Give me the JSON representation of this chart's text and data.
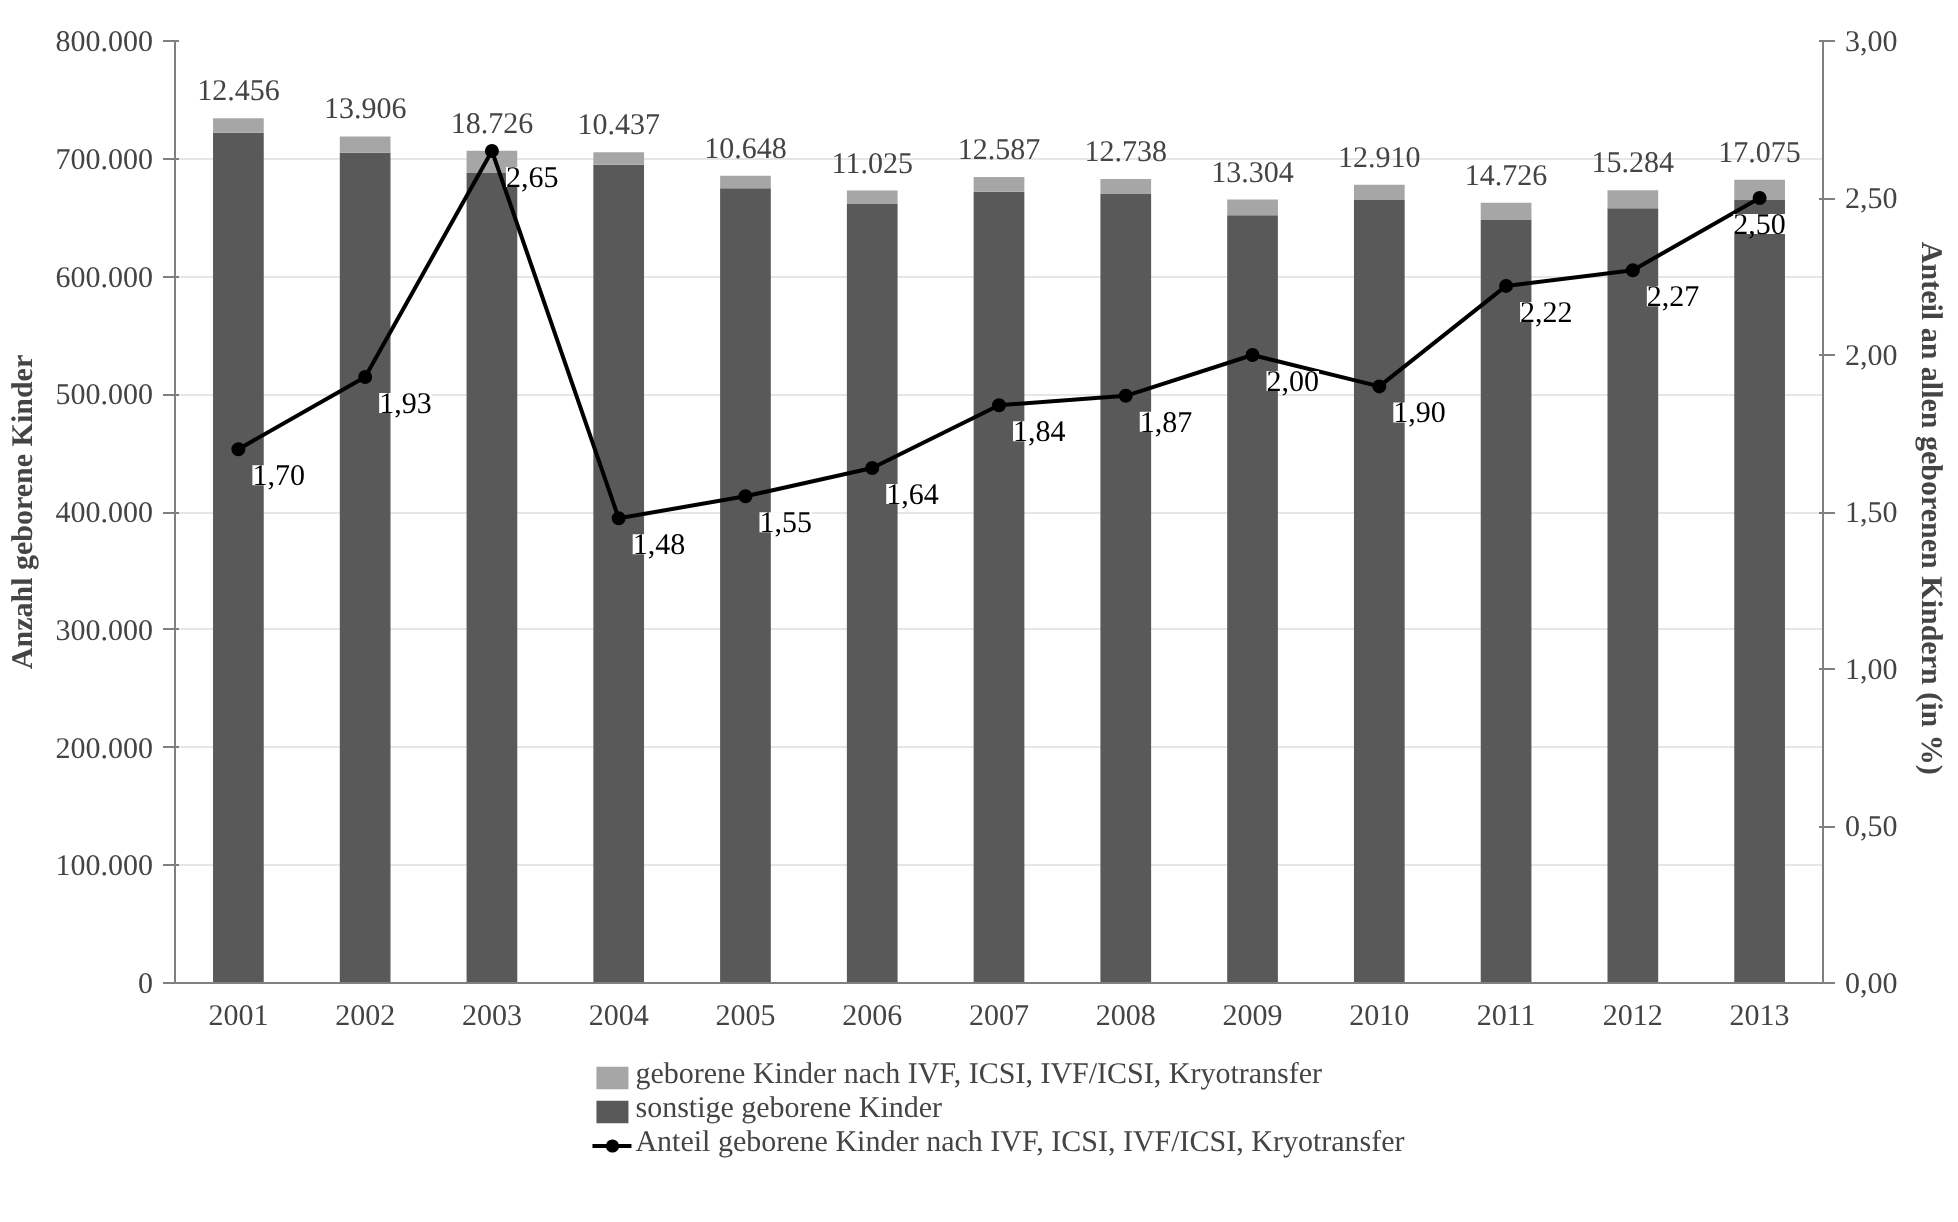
{
  "chart_data": {
    "type": "bar",
    "stacked": true,
    "categories": [
      "2001",
      "2002",
      "2003",
      "2004",
      "2005",
      "2006",
      "2007",
      "2008",
      "2009",
      "2010",
      "2011",
      "2012",
      "2013"
    ],
    "ylabel": "Anzahl geborene Kinder",
    "y2label": "Anteil an allen geborenen Kindern  (in %)",
    "ylim": [
      0,
      800000
    ],
    "yticks": [
      {
        "value": 0,
        "label": "0"
      },
      {
        "value": 100000,
        "label": "100.000"
      },
      {
        "value": 200000,
        "label": "200.000"
      },
      {
        "value": 300000,
        "label": "300.000"
      },
      {
        "value": 400000,
        "label": "400.000"
      },
      {
        "value": 500000,
        "label": "500.000"
      },
      {
        "value": 600000,
        "label": "600.000"
      },
      {
        "value": 700000,
        "label": "700.000"
      },
      {
        "value": 800000,
        "label": "800.000"
      }
    ],
    "y2lim": [
      0,
      3
    ],
    "y2ticks": [
      {
        "value": 0,
        "label": "0,00"
      },
      {
        "value": 0.5,
        "label": "0,50"
      },
      {
        "value": 1,
        "label": "1,00"
      },
      {
        "value": 1.5,
        "label": "1,50"
      },
      {
        "value": 2,
        "label": "2,00"
      },
      {
        "value": 2.5,
        "label": "2,50"
      },
      {
        "value": 3,
        "label": "3,00"
      }
    ],
    "grid": "y",
    "legend": "bottom",
    "series": [
      {
        "name": "sonstige geborene Kinder",
        "color": "#595959",
        "values": [
          722000,
          705000,
          688000,
          695000,
          675000,
          662000,
          672000,
          670000,
          652000,
          665000,
          648000,
          658000,
          665000
        ]
      },
      {
        "name": "geborene Kinder nach IVF, ICSI, IVF/ICSI, Kryotransfer",
        "color": "#a6a6a6",
        "values": [
          12456,
          13906,
          18726,
          10437,
          10648,
          11025,
          12587,
          12738,
          13304,
          12910,
          14726,
          15284,
          17075
        ],
        "value_labels": [
          "12.456",
          "13.906",
          "18.726",
          "10.437",
          "10.648",
          "11.025",
          "12.587",
          "12.738",
          "13.304",
          "12.910",
          "14.726",
          "15.284",
          "17.075"
        ]
      },
      {
        "name": "Anteil geborene Kinder nach IVF, ICSI, IVF/ICSI, Kryotransfer",
        "type": "line",
        "axis": "y2",
        "color": "#000000",
        "marker": "circle",
        "values": [
          1.7,
          1.93,
          2.65,
          1.48,
          1.55,
          1.64,
          1.84,
          1.87,
          2.0,
          1.9,
          2.22,
          2.27,
          2.5
        ],
        "value_labels": [
          "1,70",
          "1,93",
          "2,65",
          "1,48",
          "1,55",
          "1,64",
          "1,84",
          "1,87",
          "2,00",
          "1,90",
          "2,22",
          "2,27",
          "2,50"
        ]
      }
    ]
  }
}
